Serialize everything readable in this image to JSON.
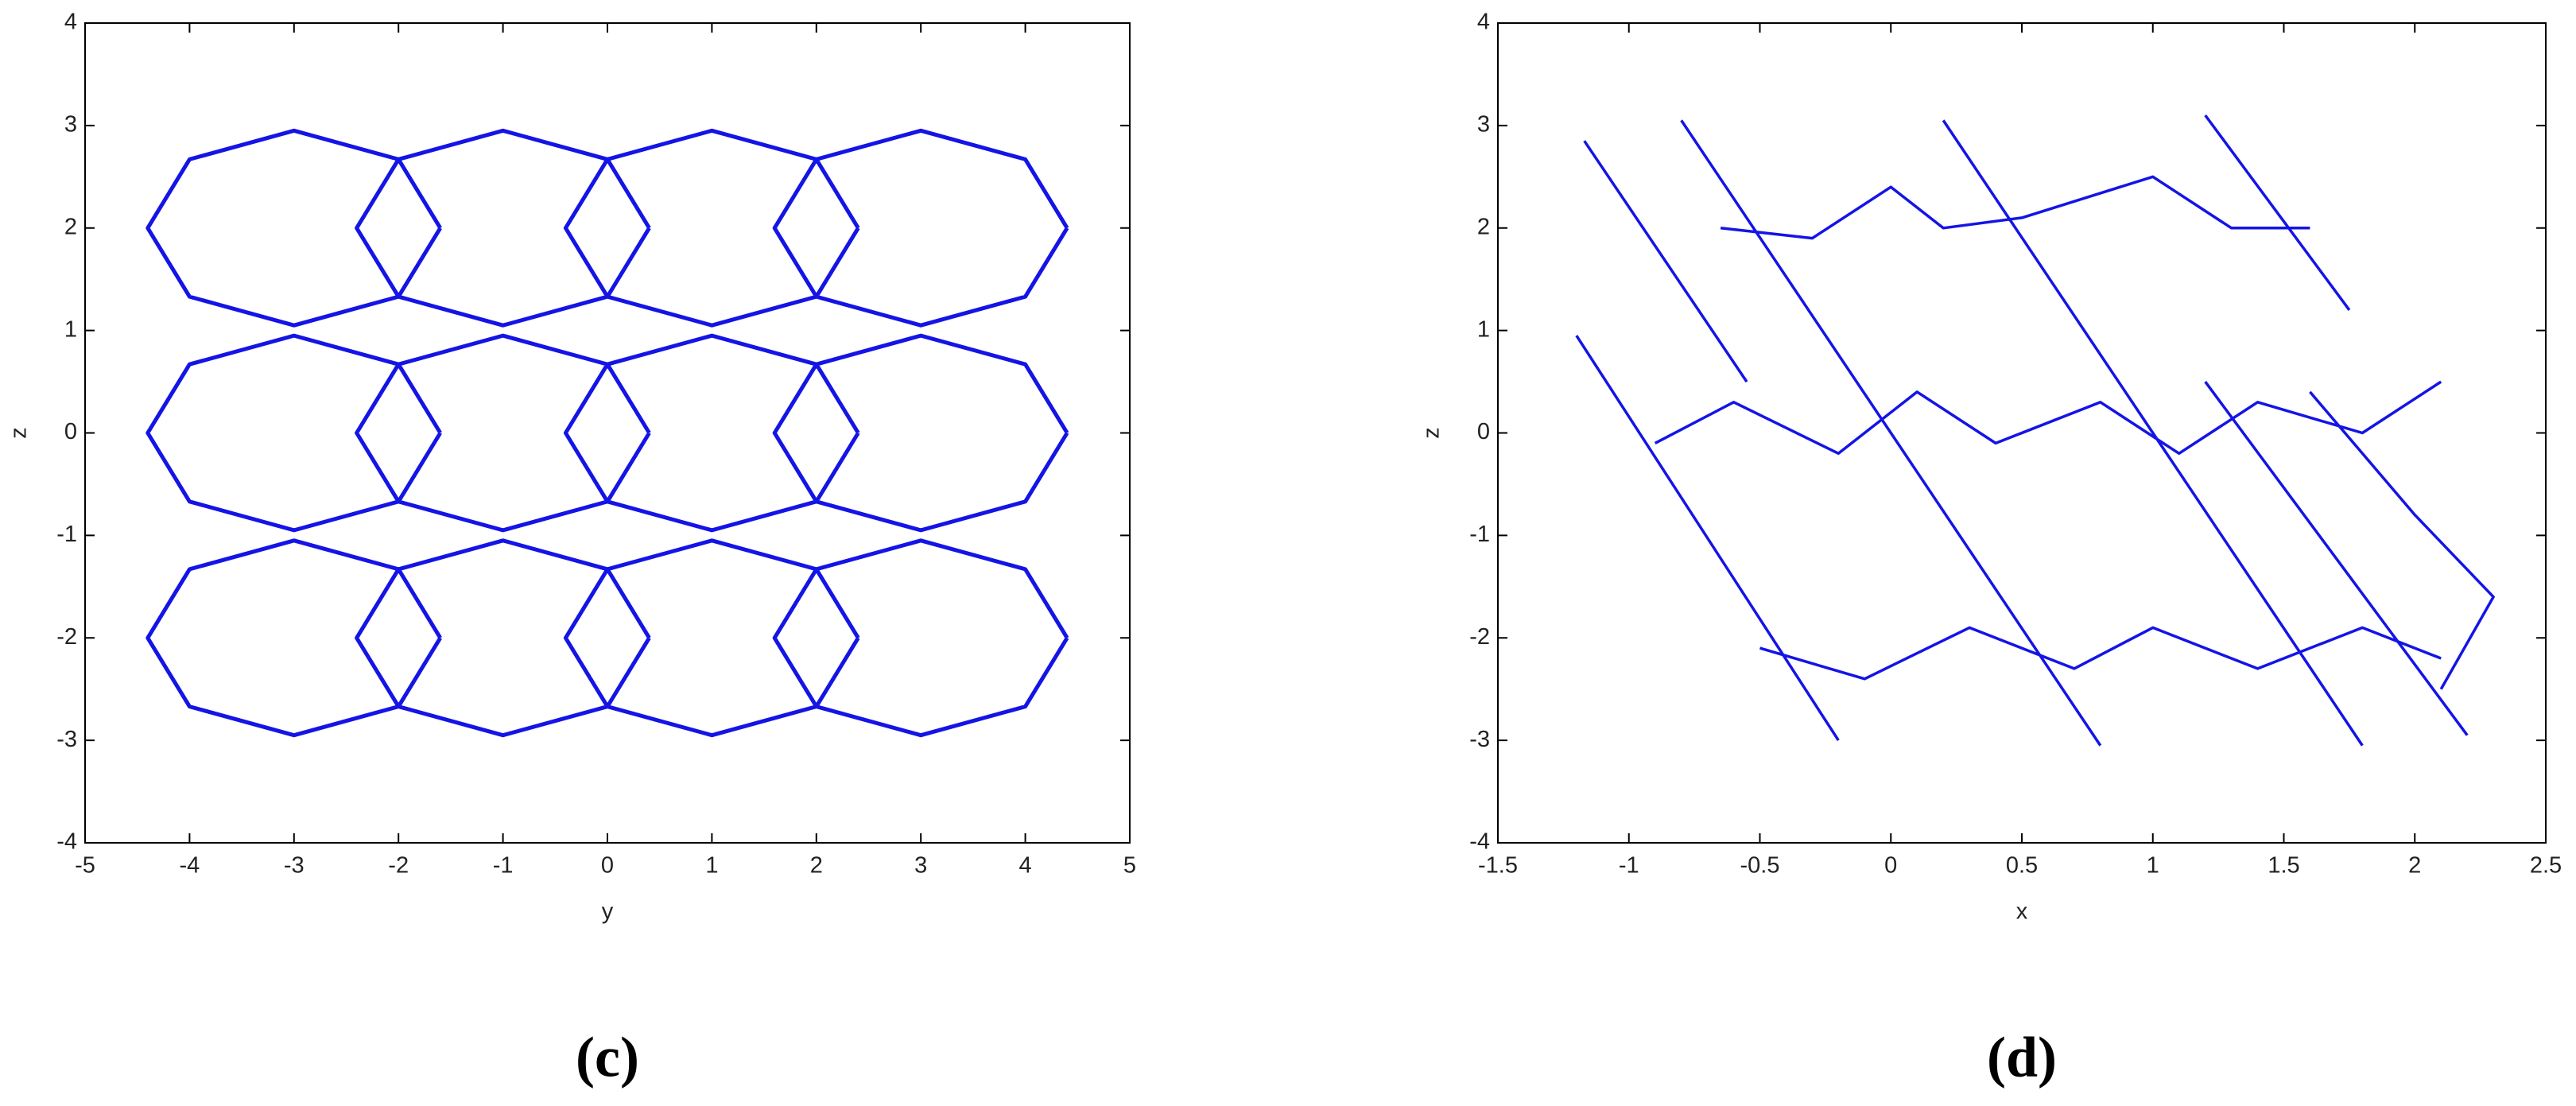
{
  "chart_data": [
    {
      "type": "line",
      "xlabel": "y",
      "ylabel": "z",
      "caption": "(c)",
      "xlim": [
        -5,
        5
      ],
      "ylim": [
        -4,
        4
      ],
      "xticks": [
        -5,
        -4,
        -3,
        -2,
        -1,
        0,
        1,
        2,
        3,
        4,
        5
      ],
      "yticks": [
        -4,
        -3,
        -2,
        -1,
        0,
        1,
        2,
        3,
        4
      ],
      "x": [
        -1.6,
        -2,
        -3,
        -4,
        -4.4,
        -4,
        -3,
        -2,
        -1.6,
        null,
        0.4,
        0,
        -1,
        -2,
        -2.4,
        -2,
        -1,
        0,
        0.4,
        null,
        2.4,
        2,
        1,
        0,
        -0.4,
        0,
        1,
        2,
        2.4,
        null,
        4.4,
        4,
        3,
        2,
        1.6,
        2,
        3,
        4,
        4.4,
        null,
        -1.6,
        -2,
        -3,
        -4,
        -4.4,
        -4,
        -3,
        -2,
        -1.6,
        null,
        0.4,
        0,
        -1,
        -2,
        -2.4,
        -2,
        -1,
        0,
        0.4,
        null,
        2.4,
        2,
        1,
        0,
        -0.4,
        0,
        1,
        2,
        2.4,
        null,
        4.4,
        4,
        3,
        2,
        1.6,
        2,
        3,
        4,
        4.4,
        null,
        -1.6,
        -2,
        -3,
        -4,
        -4.4,
        -4,
        -3,
        -2,
        -1.6,
        null,
        0.4,
        0,
        -1,
        -2,
        -2.4,
        -2,
        -1,
        0,
        0.4,
        null,
        2.4,
        2,
        1,
        0,
        -0.4,
        0,
        1,
        2,
        2.4,
        null,
        4.4,
        4,
        3,
        2,
        1.6,
        2,
        3,
        4,
        4.4
      ],
      "series": [
        {
          "color": "#1414e6",
          "values": [
            2,
            2.67,
            2.95,
            2.67,
            2,
            1.33,
            1.05,
            1.33,
            2,
            null,
            2,
            2.67,
            2.95,
            2.67,
            2,
            1.33,
            1.05,
            1.33,
            2,
            null,
            2,
            2.67,
            2.95,
            2.67,
            2,
            1.33,
            1.05,
            1.33,
            2,
            null,
            2,
            2.67,
            2.95,
            2.67,
            2,
            1.33,
            1.05,
            1.33,
            2,
            null,
            0,
            0.67,
            0.95,
            0.67,
            0,
            -0.67,
            -0.95,
            -0.67,
            0,
            null,
            0,
            0.67,
            0.95,
            0.67,
            0,
            -0.67,
            -0.95,
            -0.67,
            0,
            null,
            0,
            0.67,
            0.95,
            0.67,
            0,
            -0.67,
            -0.95,
            -0.67,
            0,
            null,
            0,
            0.67,
            0.95,
            0.67,
            0,
            -0.67,
            -0.95,
            -0.67,
            0,
            null,
            -2,
            -1.33,
            -1.05,
            -1.33,
            -2,
            -2.67,
            -2.95,
            -2.67,
            -2,
            null,
            -2,
            -1.33,
            -1.05,
            -1.33,
            -2,
            -2.67,
            -2.95,
            -2.67,
            -2,
            null,
            -2,
            -1.33,
            -1.05,
            -1.33,
            -2,
            -2.67,
            -2.95,
            -2.67,
            -2,
            null,
            -2,
            -1.33,
            -1.05,
            -1.33,
            -2,
            -2.67,
            -2.95,
            -2.67,
            -2
          ]
        }
      ]
    },
    {
      "type": "line",
      "xlabel": "x",
      "ylabel": "z",
      "caption": "(d)",
      "xlim": [
        -1.5,
        2.5
      ],
      "ylim": [
        -4,
        4
      ],
      "xticks": [
        -1.5,
        -1,
        -0.5,
        0,
        0.5,
        1,
        1.5,
        2,
        2.5
      ],
      "yticks": [
        -4,
        -3,
        -2,
        -1,
        0,
        1,
        2,
        3,
        4
      ],
      "x": [
        -1.17,
        -0.55,
        null,
        -0.8,
        0,
        0.8,
        null,
        0.2,
        1,
        1.8,
        null,
        1.2,
        1.75,
        null,
        -1.2,
        -0.2,
        null,
        1.2,
        2.2,
        null,
        -0.65,
        -0.3,
        0,
        0.2,
        0.5,
        1,
        1.3,
        1.6,
        null,
        -0.9,
        -0.6,
        -0.2,
        0.1,
        0.4,
        0.8,
        1.1,
        1.4,
        1.8,
        2.1,
        null,
        -0.5,
        -0.1,
        0.3,
        0.7,
        1,
        1.4,
        1.8,
        2.1,
        null,
        1.6,
        2,
        2.3,
        2.1
      ],
      "series": [
        {
          "color": "#1414e6",
          "values": [
            2.85,
            0.5,
            null,
            3.05,
            0,
            -3.05,
            null,
            3.05,
            0,
            -3.05,
            null,
            3.1,
            1.2,
            null,
            0.95,
            -3,
            null,
            0.5,
            -2.95,
            null,
            2,
            1.9,
            2.4,
            2,
            2.1,
            2.5,
            2,
            2,
            null,
            -0.1,
            0.3,
            -0.2,
            0.4,
            -0.1,
            0.3,
            -0.2,
            0.3,
            0,
            0.5,
            null,
            -2.1,
            -2.4,
            -1.9,
            -2.3,
            -1.9,
            -2.3,
            -1.9,
            -2.2,
            null,
            0.4,
            -0.8,
            -1.6,
            -2.5
          ]
        }
      ]
    }
  ]
}
